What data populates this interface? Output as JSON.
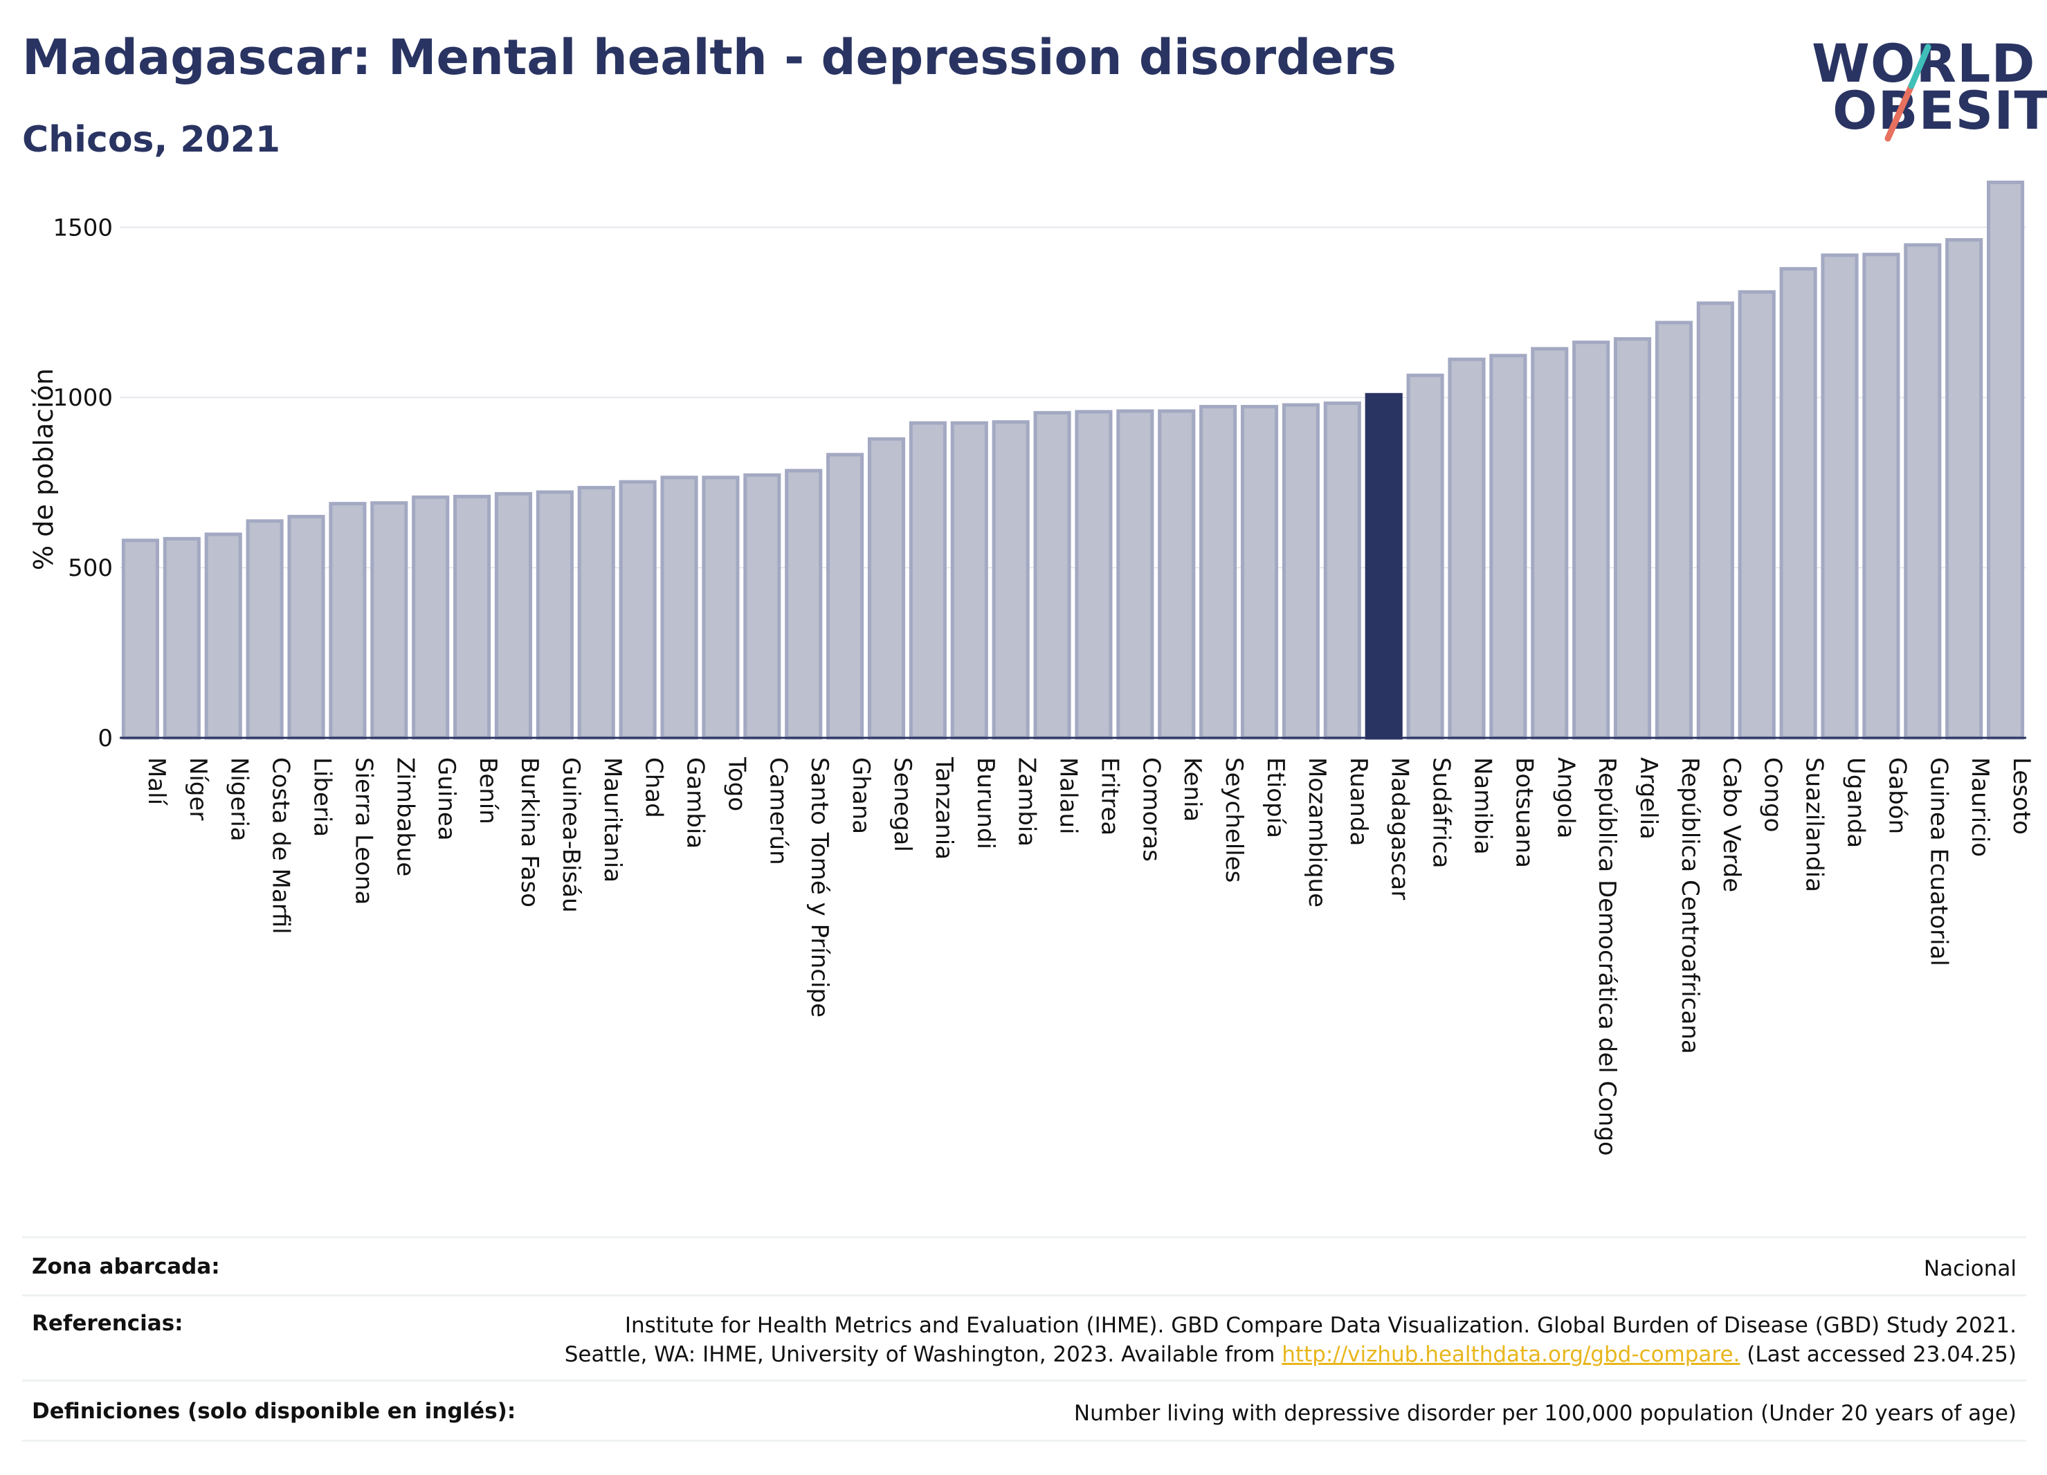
{
  "header": {
    "title": "Madagascar: Mental health - depression disorders",
    "subtitle": "Chicos, 2021"
  },
  "logo": {
    "line1": "WORLD",
    "line2": "OBESITY"
  },
  "chart_data": {
    "type": "bar",
    "ylabel": "% de población",
    "xlabel": "",
    "ylim": [
      0,
      1700
    ],
    "yticks": [
      0,
      500,
      1000,
      1500
    ],
    "grid": true,
    "highlight": "Madagascar",
    "colors": {
      "bar": "#bcc0cf",
      "bar_edge": "#a3a9c2",
      "highlight": "#2a3462",
      "grid": "#e6e8ee"
    },
    "categories": [
      "Malí",
      "Níger",
      "Nigeria",
      "Costa de Marfil",
      "Liberia",
      "Sierra Leona",
      "Zimbabue",
      "Guinea",
      "Benín",
      "Burkina Faso",
      "Guinea-Bisáu",
      "Mauritania",
      "Chad",
      "Gambia",
      "Togo",
      "Camerún",
      "Santo Tomé y Príncipe",
      "Ghana",
      "Senegal",
      "Tanzania",
      "Burundi",
      "Zambia",
      "Malaui",
      "Eritrea",
      "Comoras",
      "Kenia",
      "Seychelles",
      "Etiopía",
      "Mozambique",
      "Ruanda",
      "Madagascar",
      "Sudáfrica",
      "Namibia",
      "Botsuana",
      "Angola",
      "República Democrática del Congo",
      "Argelia",
      "República Centroafricana",
      "Cabo Verde",
      "Congo",
      "Suazilandia",
      "Uganda",
      "Gabón",
      "Guinea Ecuatorial",
      "Mauricio",
      "Lesoto"
    ],
    "values": [
      580,
      585,
      598,
      637,
      650,
      688,
      690,
      707,
      709,
      717,
      722,
      735,
      752,
      765,
      765,
      772,
      785,
      832,
      878,
      925,
      925,
      928,
      955,
      958,
      960,
      960,
      973,
      973,
      978,
      983,
      1008,
      1065,
      1112,
      1123,
      1143,
      1162,
      1172,
      1220,
      1277,
      1310,
      1378,
      1418,
      1420,
      1448,
      1463,
      1632
    ]
  },
  "info": {
    "coverage_label": "Zona abarcada:",
    "coverage_value": "Nacional",
    "references_label": "Referencias:",
    "references_line1": "Institute for Health Metrics and Evaluation (IHME). GBD Compare Data Visualization. Global Burden of Disease (GBD) Study 2021.",
    "references_line2_pre": "Seattle, WA: IHME, University of Washington, 2023. Available from ",
    "references_link": "http://vizhub.healthdata.org/gbd-compare.",
    "references_line2_post": " (Last accessed 23.04.25)",
    "definitions_label": "Definiciones (solo disponible en inglés):",
    "definitions_value": "Number living with depressive disorder per 100,000 population (Under 20 years of age)"
  }
}
